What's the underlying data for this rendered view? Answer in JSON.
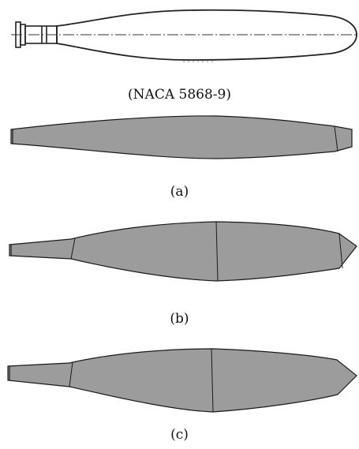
{
  "colors": {
    "outline": "#222222",
    "blade_fill": "#9c9c9c",
    "blade_edge": "#1a1a1a",
    "background": "#ffffff"
  },
  "drawings": {
    "reference": {
      "caption": "(NACA 5868-9)",
      "style": "line-drawing",
      "icon": "blade-outline-icon"
    },
    "variants": [
      {
        "caption": "(a)",
        "style": "shaded-solid",
        "section_lines": 1
      },
      {
        "caption": "(b)",
        "style": "shaded-solid",
        "section_lines": 3
      },
      {
        "caption": "(c)",
        "style": "shaded-solid",
        "section_lines": 2
      }
    ]
  }
}
